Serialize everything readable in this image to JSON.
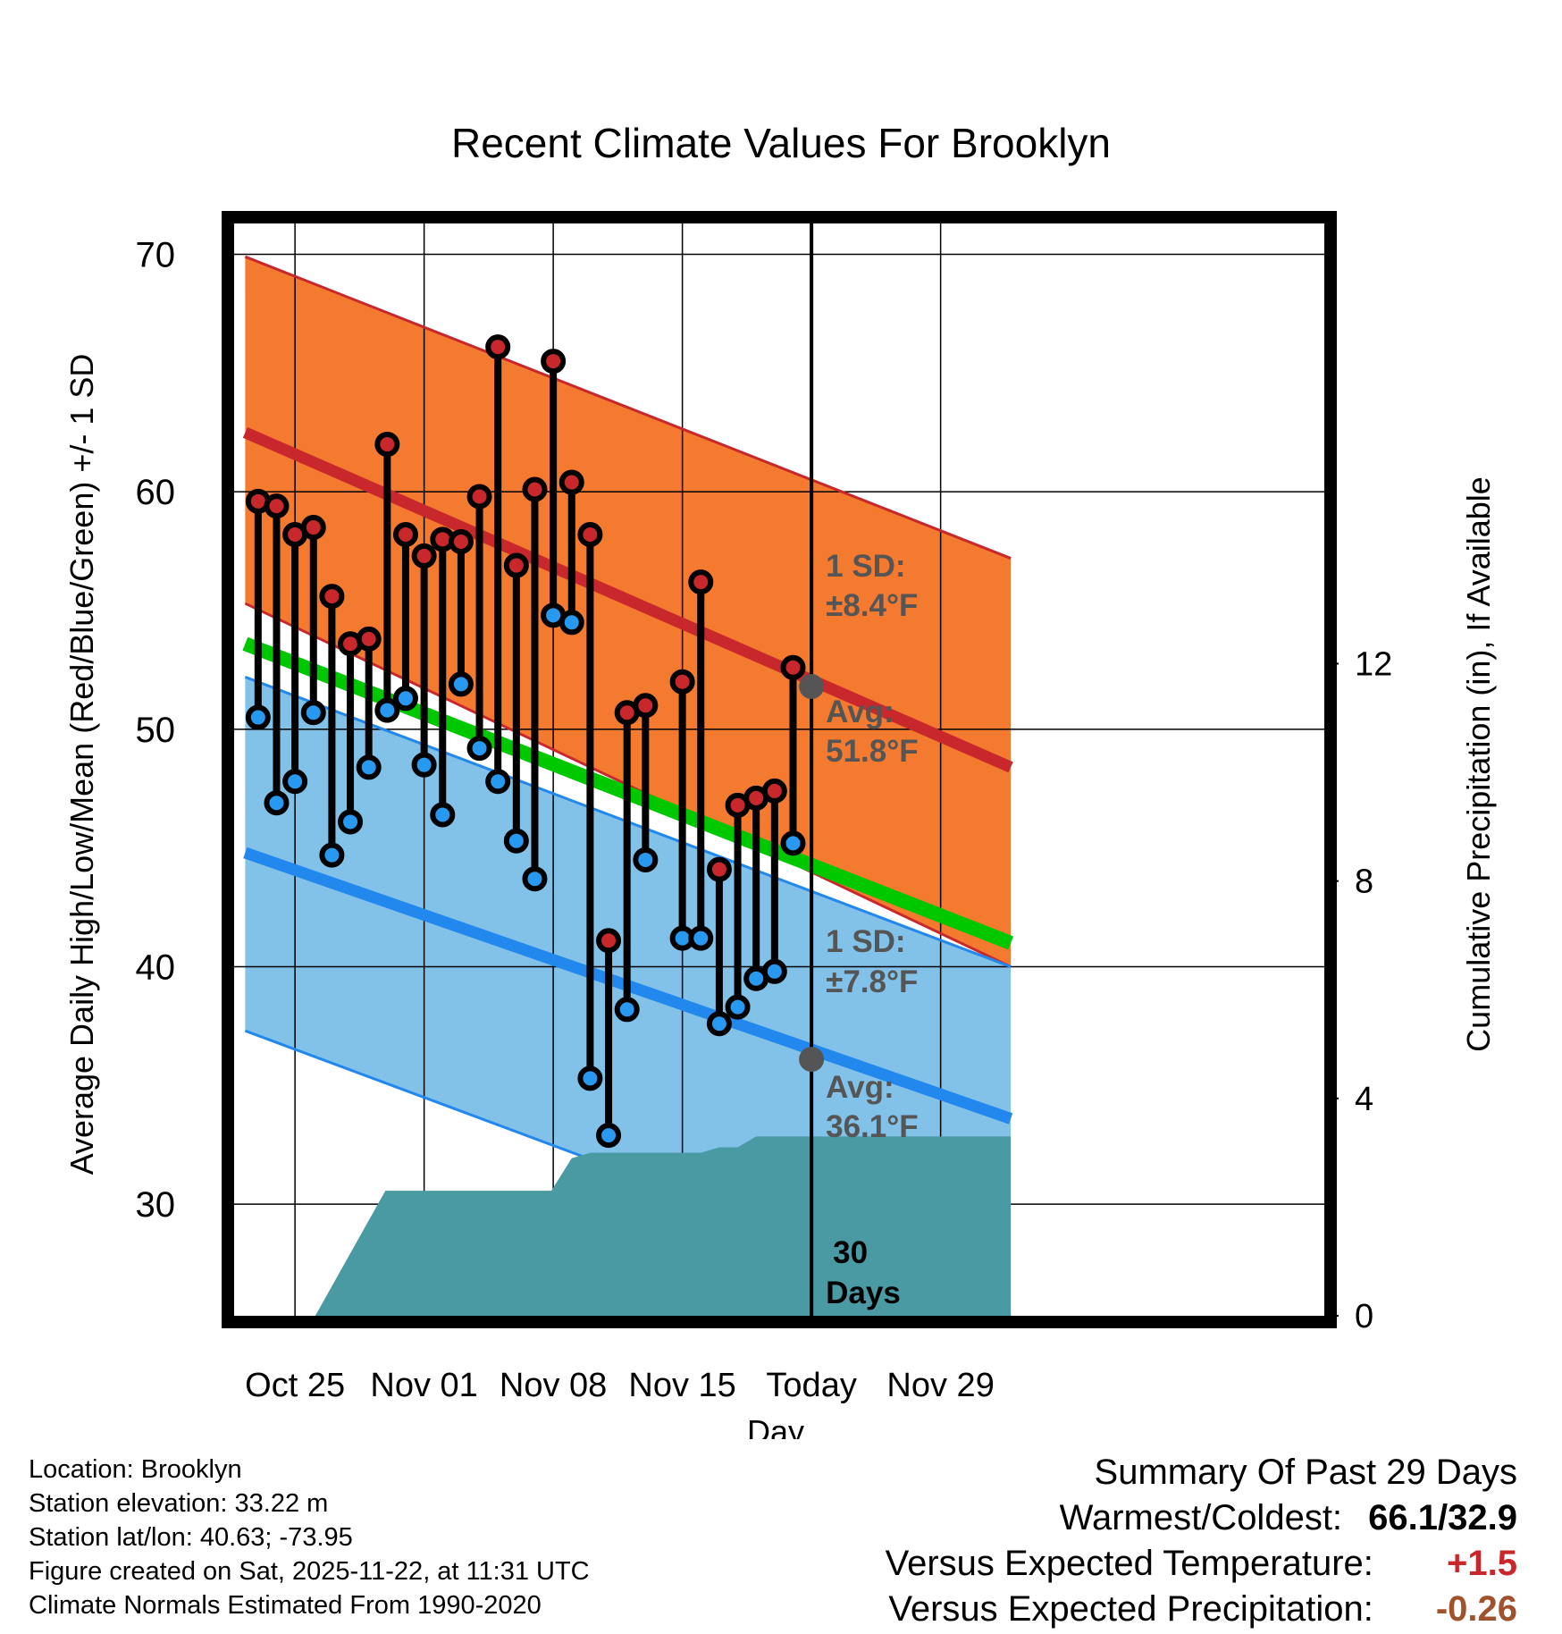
{
  "chart_data": {
    "type": "line",
    "title": "Recent Climate Values For Brooklyn",
    "xlabel": "Day",
    "ylabel": "Average Daily High/Low/Mean (Red/Blue/Green) +/- 1 SD",
    "y2label": "Cumulative Precipitation (in), If Available",
    "ylim": [
      25.3,
      71.3
    ],
    "y2lim": [
      0,
      20.1
    ],
    "xlim": [
      -3.3,
      55.8
    ],
    "yticks": [
      "30",
      "40",
      "50",
      "60",
      "70"
    ],
    "y2ticks": [
      "0",
      "4",
      "8",
      "12"
    ],
    "xticks": [
      {
        "label": "Oct 25",
        "x": 0
      },
      {
        "label": "Nov 01",
        "x": 7
      },
      {
        "label": "Nov 08",
        "x": 14
      },
      {
        "label": "Nov 15",
        "x": 21
      },
      {
        "label": "Today",
        "x": 28
      },
      {
        "label": "Nov 29",
        "x": 35
      }
    ],
    "today_x": 28,
    "normals": {
      "x": [
        -2.7,
        38.8
      ],
      "high_mean": [
        62.5,
        48.4
      ],
      "high_upper": [
        69.9,
        57.2
      ],
      "high_lower": [
        55.3,
        40.0
      ],
      "low_mean": [
        44.8,
        33.6
      ],
      "low_upper": [
        52.2,
        40.0
      ],
      "low_lower": [
        37.3,
        25.3
      ],
      "daily_mean": [
        53.6,
        41.0
      ]
    },
    "series": [
      {
        "name": "High",
        "color": "#c8282c",
        "x": [
          -2,
          -1,
          0,
          1,
          2,
          3,
          4,
          5,
          6,
          7,
          8,
          9,
          10,
          11,
          12,
          13,
          14,
          15,
          16,
          17,
          18,
          19,
          21,
          22,
          23,
          24,
          25,
          26,
          27
        ],
        "values": [
          59.6,
          59.4,
          58.2,
          58.5,
          55.6,
          53.6,
          53.8,
          62.0,
          58.2,
          57.3,
          58.0,
          57.9,
          59.8,
          66.1,
          56.9,
          60.1,
          65.5,
          60.4,
          58.2,
          41.1,
          50.7,
          51.0,
          52.0,
          56.2,
          44.1,
          46.8,
          47.1,
          47.4,
          52.6
        ]
      },
      {
        "name": "Low",
        "color": "#2899f0",
        "x": [
          -2,
          -1,
          0,
          1,
          2,
          3,
          4,
          5,
          6,
          7,
          8,
          9,
          10,
          11,
          12,
          13,
          14,
          15,
          16,
          17,
          18,
          19,
          21,
          22,
          23,
          24,
          25,
          26,
          27
        ],
        "values": [
          50.5,
          46.9,
          47.8,
          50.7,
          44.7,
          46.1,
          48.4,
          50.8,
          51.3,
          48.5,
          46.4,
          51.9,
          49.2,
          47.8,
          45.3,
          43.7,
          54.8,
          54.5,
          35.3,
          32.9,
          38.2,
          44.5,
          41.2,
          41.2,
          37.6,
          38.3,
          39.5,
          39.8,
          45.2
        ]
      }
    ],
    "precipitation": {
      "x": [
        1.1,
        4.9,
        13.9,
        15.0,
        16.0,
        21.0,
        22.0,
        23.0,
        24.0,
        25.0,
        26.0,
        38.8
      ],
      "values": [
        0,
        2.3,
        2.3,
        2.9,
        3.0,
        3.0,
        3.0,
        3.1,
        3.1,
        3.3,
        3.3,
        3.3
      ]
    },
    "annotations": {
      "high_sd_label": "1 SD:",
      "high_sd_value": "±8.4°F",
      "high_avg_label": "Avg:",
      "high_avg_value": "51.8°F",
      "high_avg_y": 51.8,
      "low_sd_label": "1 SD:",
      "low_sd_value": "±7.8°F",
      "low_avg_label": "Avg:",
      "low_avg_value": "36.1°F",
      "low_avg_y": 36.1,
      "days_label_1": "30",
      "days_label_2": "Days"
    },
    "colors": {
      "high_band": "#f47a30",
      "high_line": "#c8282c",
      "low_band": "#82c1e8",
      "low_line": "#2288ee",
      "mean_line": "#00c800",
      "overlap": "#a01414",
      "precip": "#4a9aa4",
      "annotation": "#555555"
    }
  },
  "footer": {
    "location": "Location: Brooklyn",
    "elevation": "Station elevation: 33.22 m",
    "latlon": "Station lat/lon: 40.63; -73.95",
    "created": "Figure created on Sat, 2025-11-22, at 11:31 UTC",
    "normals": "Climate Normals Estimated From 1990-2020"
  },
  "summary": {
    "title": "Summary Of Past 29 Days",
    "warmest_coldest_label": "Warmest/Coldest:",
    "warmest_coldest_value": "66.1/32.9",
    "temp_label": "Versus Expected Temperature:",
    "temp_value": "+1.5",
    "temp_color": "#c8282c",
    "precip_label": "Versus Expected Precipitation:",
    "precip_value": "-0.26",
    "precip_color": "#a0522d"
  }
}
